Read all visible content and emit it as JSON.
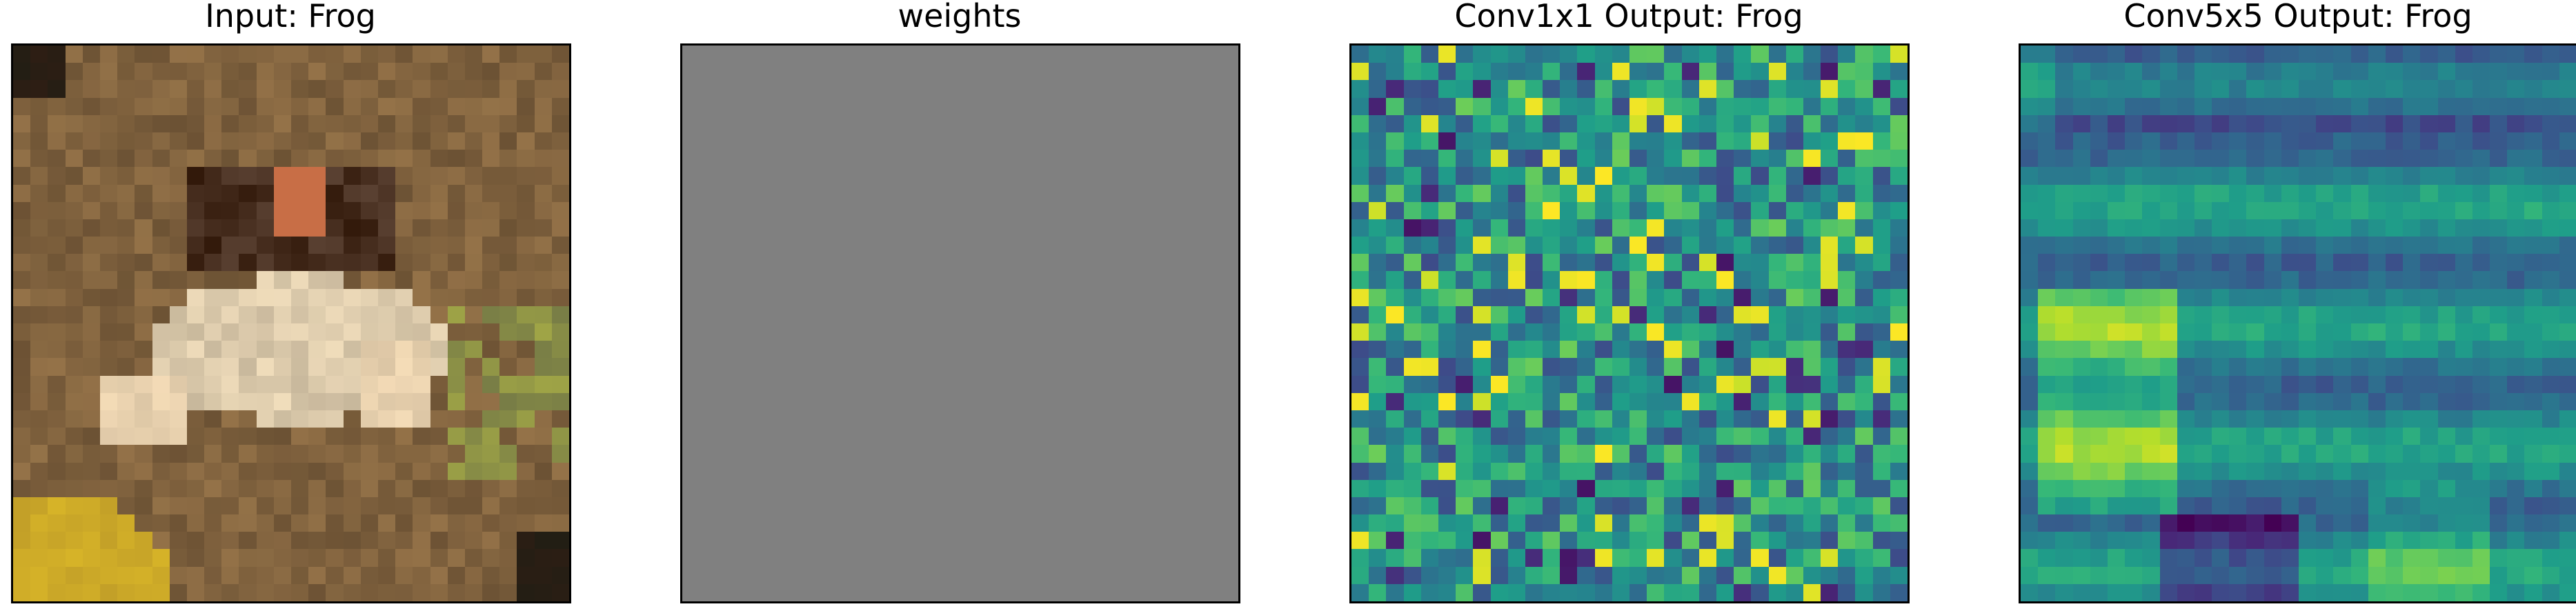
{
  "figure": {
    "panels": [
      {
        "id": "input",
        "title": "Input: Frog",
        "kind": "rgb-image"
      },
      {
        "id": "weights",
        "title": "weights",
        "kind": "solid",
        "color": "#808080"
      },
      {
        "id": "conv1x1",
        "title": "Conv1x1 Output: Frog",
        "kind": "heatmap",
        "colormap": "viridis"
      },
      {
        "id": "conv5x5",
        "title": "Conv5x5 Output: Frog",
        "kind": "heatmap",
        "colormap": "viridis"
      }
    ]
  },
  "colors": {
    "border": "#000000",
    "weights_fill": "#808080",
    "viridis_low": "#440154",
    "viridis_mid": "#21918c",
    "viridis_high": "#fde725"
  }
}
